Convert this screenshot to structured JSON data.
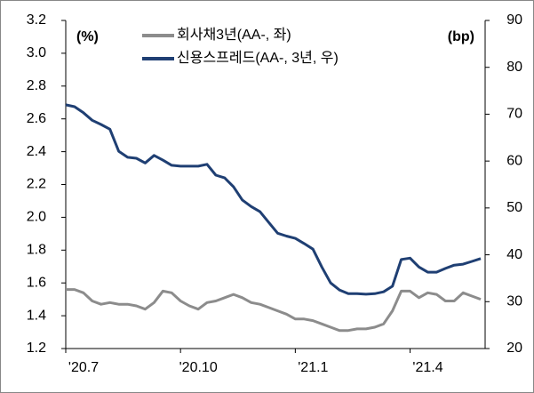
{
  "chart_data": {
    "type": "line",
    "categories": [
      "'20.7",
      null,
      null,
      null,
      null,
      null,
      null,
      null,
      null,
      null,
      null,
      null,
      null,
      "'20.10",
      null,
      null,
      null,
      null,
      null,
      null,
      null,
      null,
      null,
      null,
      null,
      null,
      "'21.1",
      null,
      null,
      null,
      null,
      null,
      null,
      null,
      null,
      null,
      null,
      null,
      null,
      "'21.4",
      null,
      null,
      null,
      null,
      null,
      null,
      null,
      null
    ],
    "series": [
      {
        "name": "회사채3년(AA-, 좌)",
        "color": "#8c8c8c",
        "values": [
          1.56,
          1.56,
          1.54,
          1.49,
          1.47,
          1.48,
          1.47,
          1.47,
          1.46,
          1.44,
          1.48,
          1.55,
          1.54,
          1.49,
          1.46,
          1.44,
          1.48,
          1.49,
          1.51,
          1.53,
          1.51,
          1.48,
          1.47,
          1.45,
          1.43,
          1.41,
          1.38,
          1.38,
          1.37,
          1.35,
          1.33,
          1.31,
          1.31,
          1.32,
          1.32,
          1.33,
          1.35,
          1.43,
          1.55,
          1.55,
          1.51,
          1.54,
          1.53,
          1.49,
          1.49,
          1.54,
          1.52,
          1.5
        ]
      },
      {
        "name": "신용스프레드(AA-, 3년, 우)",
        "color": "#1f3f73",
        "axis": "y2",
        "values": [
          72,
          71.6,
          70.3,
          68.7,
          67.8,
          66.8,
          62.1,
          60.8,
          60.6,
          59.6,
          61.2,
          60.2,
          59.1,
          58.9,
          58.9,
          58.9,
          59.3,
          57,
          56.4,
          54.5,
          51.7,
          50.3,
          49.2,
          46.9,
          44.6,
          44,
          43.5,
          42.4,
          41.2,
          37.4,
          34,
          32.5,
          31.7,
          31.7,
          31.6,
          31.7,
          32.1,
          33.3,
          39,
          39.3,
          37.4,
          36.3,
          36.3,
          37.1,
          37.8,
          38,
          38.6,
          39.2
        ]
      }
    ],
    "ylabel": "(%)",
    "y2label": "(bp)",
    "ylim": [
      1.2,
      3.2
    ],
    "yticks": [
      1.2,
      1.4,
      1.6,
      1.8,
      {
        "value": 2,
        "label": "2.0"
      },
      2.2,
      2.4,
      2.6,
      2.8,
      {
        "value": 3,
        "label": "3.0"
      },
      3.2
    ],
    "y2lim": [
      20,
      90
    ],
    "y2ticks": [
      20,
      30,
      40,
      50,
      60,
      70,
      80,
      90
    ],
    "grid": false
  }
}
